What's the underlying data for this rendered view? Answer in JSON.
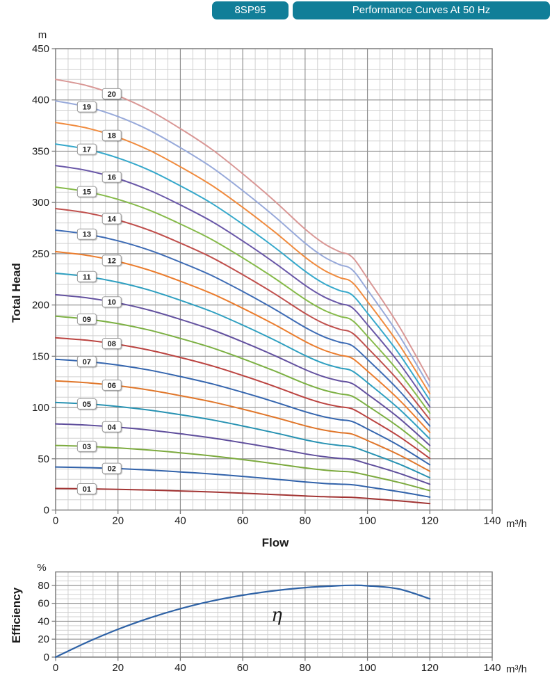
{
  "header": {
    "model": "8SP95",
    "title": "Performance Curves At 50 Hz",
    "accent_color": "#117E98"
  },
  "chart_data": [
    {
      "type": "line",
      "title": "Head curves for stages 01-20",
      "xlabel": "Flow",
      "ylabel": "Total Head",
      "x_unit": "m³/h",
      "y_unit": "m",
      "xlim": [
        0,
        140
      ],
      "ylim": [
        0,
        450
      ],
      "x_major_ticks": [
        0,
        20,
        40,
        60,
        80,
        100,
        120,
        140
      ],
      "y_major_ticks": [
        0,
        50,
        100,
        150,
        200,
        250,
        300,
        350,
        400,
        450
      ],
      "x_minor_step": 4,
      "y_minor_step": 10,
      "grid": true,
      "legend_position": "on-curve-labels",
      "flow": [
        0,
        10,
        20,
        30,
        40,
        50,
        60,
        70,
        80,
        86,
        91,
        95,
        100,
        110,
        120
      ],
      "head_per_stage": [
        21.0,
        20.7,
        20.2,
        19.5,
        18.6,
        17.6,
        16.4,
        15.1,
        13.7,
        13.0,
        12.6,
        12.35,
        11.3,
        9.0,
        6.3
      ],
      "series_rule": "head(stage n, Q) = n × head_per_stage(Q); curves run Q = 0 to 120",
      "series": [
        {
          "label": "01",
          "stages": 1,
          "color": "#A23433",
          "label_at_flow": 10
        },
        {
          "label": "02",
          "stages": 2,
          "color": "#3162AA",
          "label_at_flow": 18
        },
        {
          "label": "03",
          "stages": 3,
          "color": "#7CAA3E",
          "label_at_flow": 10
        },
        {
          "label": "04",
          "stages": 4,
          "color": "#5F4E9C",
          "label_at_flow": 18
        },
        {
          "label": "05",
          "stages": 5,
          "color": "#2792B2",
          "label_at_flow": 10
        },
        {
          "label": "06",
          "stages": 6,
          "color": "#E0762A",
          "label_at_flow": 18
        },
        {
          "label": "07",
          "stages": 7,
          "color": "#3465AE",
          "label_at_flow": 10
        },
        {
          "label": "08",
          "stages": 8,
          "color": "#BB4340",
          "label_at_flow": 18
        },
        {
          "label": "09",
          "stages": 9,
          "color": "#7CB043",
          "label_at_flow": 10
        },
        {
          "label": "10",
          "stages": 10,
          "color": "#63519F",
          "label_at_flow": 18
        },
        {
          "label": "11",
          "stages": 11,
          "color": "#2E9FC0",
          "label_at_flow": 10
        },
        {
          "label": "12",
          "stages": 12,
          "color": "#EB7D2E",
          "label_at_flow": 18
        },
        {
          "label": "13",
          "stages": 13,
          "color": "#3E6CB5",
          "label_at_flow": 10
        },
        {
          "label": "14",
          "stages": 14,
          "color": "#C0504D",
          "label_at_flow": 18
        },
        {
          "label": "15",
          "stages": 15,
          "color": "#86BA4A",
          "label_at_flow": 10
        },
        {
          "label": "16",
          "stages": 16,
          "color": "#6A58A8",
          "label_at_flow": 18
        },
        {
          "label": "17",
          "stages": 17,
          "color": "#35A8CB",
          "label_at_flow": 10
        },
        {
          "label": "18",
          "stages": 18,
          "color": "#F08B3E",
          "label_at_flow": 18
        },
        {
          "label": "19",
          "stages": 19,
          "color": "#97A9DA",
          "label_at_flow": 10
        },
        {
          "label": "20",
          "stages": 20,
          "color": "#D99795",
          "label_at_flow": 18
        }
      ]
    },
    {
      "type": "line",
      "title": "Efficiency curve",
      "xlabel": "Flow",
      "ylabel": "Efficiency",
      "x_unit": "m³/h",
      "y_unit": "%",
      "xlim": [
        0,
        140
      ],
      "ylim": [
        0,
        95
      ],
      "x_major_ticks": [
        0,
        20,
        40,
        60,
        80,
        100,
        120,
        140
      ],
      "y_major_ticks": [
        0,
        20,
        40,
        60,
        80
      ],
      "x_minor_step": 4,
      "y_minor_step": 5,
      "grid": true,
      "curve_label": "η",
      "color": "#2E62A6",
      "x": [
        0,
        10,
        20,
        30,
        40,
        50,
        60,
        70,
        80,
        90,
        95,
        100,
        110,
        120
      ],
      "values": [
        0,
        16.5,
        31,
        43.5,
        54,
        62.5,
        69,
        74,
        77.5,
        79.5,
        80,
        79.5,
        76,
        65
      ]
    }
  ]
}
